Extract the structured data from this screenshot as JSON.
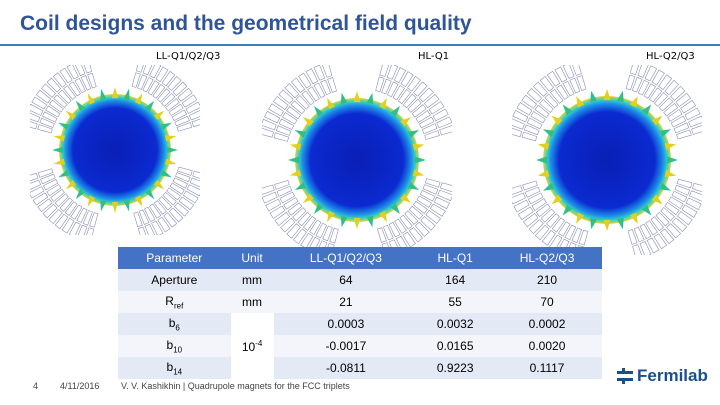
{
  "slide": {
    "title": "Coil designs and the geometrical field quality",
    "captions": [
      "LL-Q1/Q2/Q3",
      "HL-Q1",
      "HL-Q2/Q3"
    ],
    "table": {
      "headers": [
        "Parameter",
        "Unit",
        "LL-Q1/Q2/Q3",
        "HL-Q1",
        "HL-Q2/Q3"
      ],
      "rows": [
        {
          "param": "Aperture",
          "param_sub": "",
          "unit": "mm",
          "unit_sup": "",
          "v1": "64",
          "v2": "164",
          "v3": "210"
        },
        {
          "param": "R",
          "param_sub": "ref",
          "unit": "mm",
          "unit_sup": "",
          "v1": "21",
          "v2": "55",
          "v3": "70"
        },
        {
          "param": "b",
          "param_sub": "6",
          "unit": "",
          "unit_sup": "",
          "v1": "0.0003",
          "v2": "0.0032",
          "v3": "0.0002"
        },
        {
          "param": "b",
          "param_sub": "10",
          "unit": "10",
          "unit_sup": "-4",
          "v1": "-0.0017",
          "v2": "0.0165",
          "v3": "0.0020"
        },
        {
          "param": "b",
          "param_sub": "14",
          "unit": "",
          "unit_sup": "",
          "v1": "-0.0811",
          "v2": "0.9223",
          "v3": "0.1117"
        }
      ]
    },
    "footer": {
      "page": "4",
      "date": "4/11/2016",
      "author": "V. V. Kashikhin | Quadrupole magnets for the FCC triplets"
    },
    "logo": "Fermilab",
    "colors": {
      "title": "#2f5597",
      "header": "#4472c4",
      "row_alt": "#e3e9f5",
      "field_core": "#0a1fb5"
    }
  }
}
